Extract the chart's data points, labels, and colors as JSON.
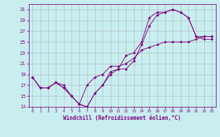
{
  "xlabel": "Windchill (Refroidissement éolien,°C)",
  "xlim": [
    -0.5,
    23.5
  ],
  "ylim": [
    13,
    32
  ],
  "yticks": [
    13,
    15,
    17,
    19,
    21,
    23,
    25,
    27,
    29,
    31
  ],
  "xticks": [
    0,
    1,
    2,
    3,
    4,
    5,
    6,
    7,
    8,
    9,
    10,
    11,
    12,
    13,
    14,
    15,
    16,
    17,
    18,
    19,
    20,
    21,
    22,
    23
  ],
  "background_color": "#c8eef0",
  "line_color": "#800080",
  "grid_color": "#b0b0b0",
  "series": [
    {
      "x": [
        0,
        1,
        2,
        3,
        4,
        5,
        6,
        7,
        8,
        9,
        10,
        11,
        12,
        13,
        14,
        15,
        16,
        17,
        18,
        19,
        20,
        21,
        22,
        23
      ],
      "y": [
        18.5,
        16.5,
        16.5,
        17.5,
        17.0,
        15.0,
        13.5,
        13.0,
        15.5,
        17.0,
        19.5,
        20.0,
        22.5,
        23.0,
        25.0,
        29.5,
        30.5,
        30.5,
        31.0,
        30.5,
        29.5,
        26.0,
        25.5,
        25.5
      ]
    },
    {
      "x": [
        0,
        1,
        2,
        3,
        4,
        5,
        6,
        7,
        8,
        9,
        10,
        11,
        12,
        13,
        14,
        15,
        16,
        17,
        18,
        19,
        20,
        21,
        22,
        23
      ],
      "y": [
        18.5,
        16.5,
        16.5,
        17.5,
        16.5,
        15.0,
        13.5,
        13.0,
        15.5,
        17.0,
        19.0,
        20.0,
        20.0,
        21.5,
        24.5,
        28.0,
        30.0,
        30.5,
        31.0,
        30.5,
        29.5,
        26.0,
        26.0,
        26.0
      ]
    },
    {
      "x": [
        0,
        1,
        2,
        3,
        4,
        5,
        6,
        7,
        8,
        9,
        10,
        11,
        12,
        13,
        14,
        15,
        16,
        17,
        18,
        19,
        20,
        21,
        22,
        23
      ],
      "y": [
        18.5,
        16.5,
        16.5,
        17.5,
        16.5,
        15.0,
        13.5,
        17.0,
        18.5,
        19.0,
        20.5,
        20.5,
        21.0,
        22.0,
        23.5,
        24.0,
        24.5,
        25.0,
        25.0,
        25.0,
        25.0,
        25.5,
        26.0,
        26.0
      ]
    }
  ]
}
